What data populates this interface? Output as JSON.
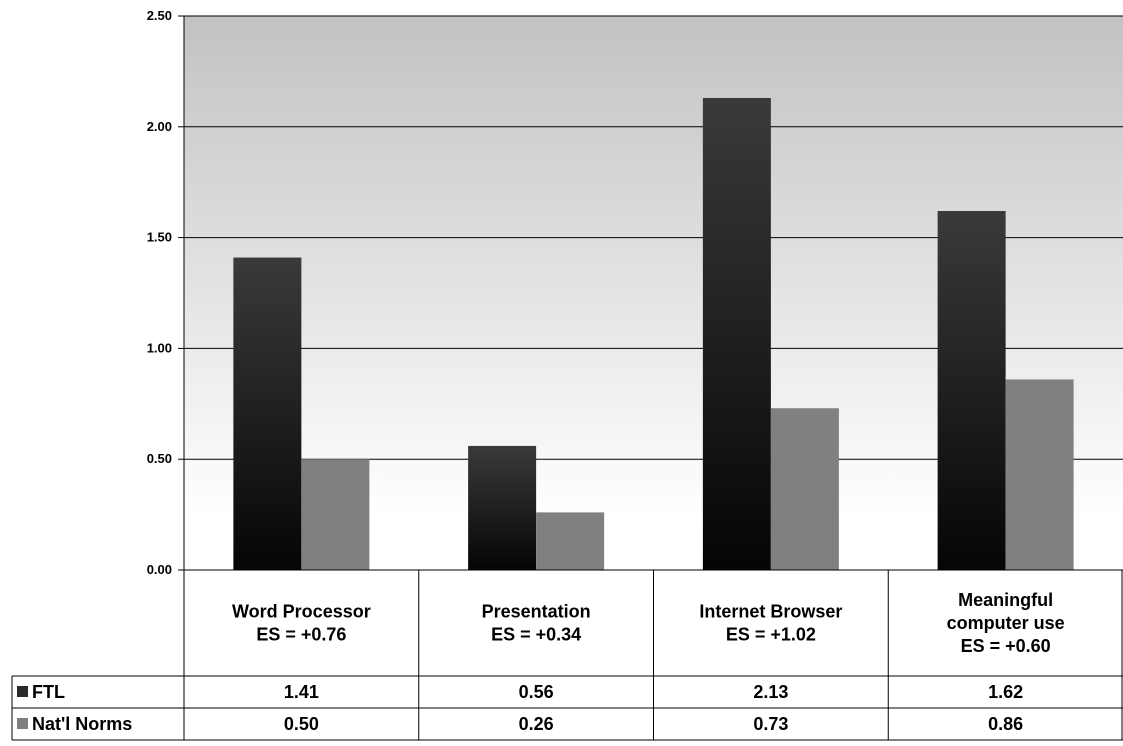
{
  "chart_data": {
    "type": "bar",
    "categories": [
      [
        "Word Processor",
        "ES = +0.76"
      ],
      [
        "Presentation",
        "ES = +0.34"
      ],
      [
        "Internet Browser",
        "ES = +1.02"
      ],
      [
        "Meaningful",
        "computer use",
        "ES = +0.60"
      ]
    ],
    "series": [
      {
        "name": "FTL",
        "values": [
          1.41,
          0.56,
          2.13,
          1.62
        ],
        "labels": [
          "1.41",
          "0.56",
          "2.13",
          "1.62"
        ],
        "color": "#2a2a2a"
      },
      {
        "name": "Nat'l Norms",
        "values": [
          0.5,
          0.26,
          0.73,
          0.86
        ],
        "labels": [
          "0.50",
          "0.26",
          "0.73",
          "0.86"
        ],
        "color": "#808080"
      }
    ],
    "yticks": [
      "0.00",
      "0.50",
      "1.00",
      "1.50",
      "2.00",
      "2.50"
    ],
    "ylim": [
      0,
      2.5
    ],
    "grid": true,
    "legend": "data-table",
    "colors": {
      "plot_bg_top": "#c2c2c2",
      "plot_bg_bottom": "#ffffff",
      "bar_dark_top": "#3a3a3a",
      "bar_dark_bottom": "#050505",
      "bar_light": "#808080"
    }
  }
}
